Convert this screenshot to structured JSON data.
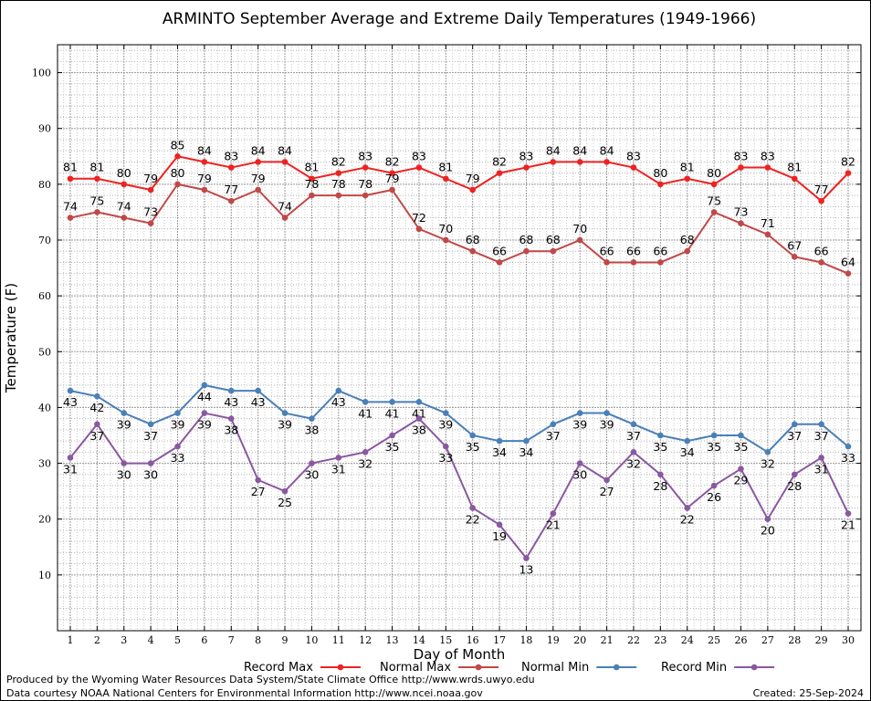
{
  "chart_data": {
    "type": "line",
    "title": "ARMINTO September Average and Extreme Daily Temperatures (1949-1966)",
    "xlabel": "Day of Month",
    "ylabel": "Temperature (F)",
    "xlim": [
      1,
      30
    ],
    "ylim": [
      0,
      105
    ],
    "yticks": [
      10,
      20,
      30,
      40,
      50,
      60,
      70,
      80,
      90,
      100
    ],
    "grid": true,
    "legend_position": "bottom",
    "x": [
      1,
      2,
      3,
      4,
      5,
      6,
      7,
      8,
      9,
      10,
      11,
      12,
      13,
      14,
      15,
      16,
      17,
      18,
      19,
      20,
      21,
      22,
      23,
      24,
      25,
      26,
      27,
      28,
      29,
      30
    ],
    "series": [
      {
        "name": "Record Max",
        "color": "#ee2222",
        "label_position": "above",
        "values": [
          81,
          81,
          80,
          79,
          85,
          84,
          83,
          84,
          84,
          81,
          82,
          83,
          82,
          83,
          81,
          79,
          82,
          83,
          84,
          84,
          84,
          83,
          80,
          81,
          80,
          83,
          83,
          81,
          77,
          82
        ]
      },
      {
        "name": "Normal Max",
        "color": "#c04848",
        "label_position": "above",
        "values": [
          74,
          75,
          74,
          73,
          80,
          79,
          77,
          79,
          74,
          78,
          78,
          78,
          79,
          72,
          70,
          68,
          66,
          68,
          68,
          70,
          66,
          66,
          66,
          68,
          75,
          73,
          71,
          67,
          66,
          64
        ]
      },
      {
        "name": "Normal Min",
        "color": "#4a80b8",
        "label_position": "below",
        "values": [
          43,
          42,
          39,
          37,
          39,
          44,
          43,
          43,
          39,
          38,
          43,
          41,
          41,
          41,
          39,
          35,
          34,
          34,
          37,
          39,
          39,
          37,
          35,
          34,
          35,
          35,
          32,
          37,
          37,
          33
        ]
      },
      {
        "name": "Record Min",
        "color": "#8a58a0",
        "label_position": "below",
        "values": [
          31,
          37,
          30,
          30,
          33,
          39,
          38,
          27,
          25,
          30,
          31,
          32,
          35,
          38,
          33,
          22,
          19,
          13,
          21,
          30,
          27,
          32,
          28,
          22,
          26,
          29,
          20,
          28,
          31,
          21
        ]
      }
    ]
  },
  "footer": {
    "produced_by": "Produced by the Wyoming Water Resources Data System/State Climate Office http://www.wrds.uwyo.edu",
    "courtesy": "Data courtesy NOAA National Centers for Environmental Information http://www.ncei.noaa.gov",
    "created": "Created: 25-Sep-2024"
  }
}
